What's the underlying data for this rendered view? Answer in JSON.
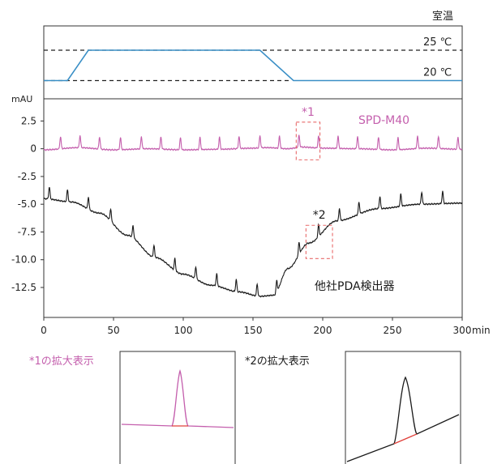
{
  "chart_data": [
    {
      "type": "line",
      "title": "室温",
      "ylabel": "",
      "xlim": [
        0,
        300
      ],
      "ylim": [
        17,
        29
      ],
      "reference_lines": [
        {
          "value": 25,
          "label": "25 ℃"
        },
        {
          "value": 20,
          "label": "20 ℃"
        }
      ],
      "series": [
        {
          "x": [
            0,
            17,
            32,
            155,
            179,
            300
          ],
          "y": [
            20,
            20,
            25,
            25,
            20,
            20
          ],
          "color": "#3a8fc6"
        }
      ]
    },
    {
      "type": "line",
      "ylabel": "mAU",
      "xlabel": "min",
      "xlim": [
        0,
        300
      ],
      "ylim": [
        -15.2,
        4.5
      ],
      "x_ticks": [
        0,
        50,
        100,
        150,
        200,
        250,
        300
      ],
      "y_ticks": [
        2.5,
        0,
        -2.5,
        -5.0,
        -7.5,
        -10.0,
        -12.5
      ],
      "x_tick_labels": [
        "0",
        "50",
        "100",
        "150",
        "200",
        "250",
        "300"
      ],
      "y_tick_labels": [
        "2.5",
        "0",
        "-2.5",
        "-5.0",
        "-7.5",
        "-10.0",
        "-12.5"
      ],
      "series": [
        {
          "name": "SPD-M40",
          "color": "#c45fad",
          "baseline": {
            "x": [
              0,
              25,
              50,
              75,
              100,
              125,
              150,
              160,
              175,
              185,
              200,
              225,
              250,
              275,
              300
            ],
            "y": [
              -0.1,
              0.1,
              -0.1,
              0.0,
              -0.1,
              -0.05,
              0.05,
              0.1,
              0.0,
              0.15,
              0.05,
              0.0,
              -0.1,
              0.05,
              -0.05
            ]
          },
          "peak_times": [
            12,
            26,
            40,
            55,
            70,
            84,
            98,
            112,
            126,
            140,
            155,
            169,
            183,
            197,
            211,
            225,
            240,
            254,
            268,
            283,
            297
          ],
          "peak_height": 1.1
        },
        {
          "name": "他社PDA検出器",
          "color": "#1a1a1a",
          "baseline": {
            "x": [
              0,
              20,
              40,
              60,
              80,
              100,
              120,
              140,
              155,
              165,
              175,
              190,
              210,
              240,
              270,
              300
            ],
            "y": [
              -4.5,
              -4.8,
              -5.8,
              -7.8,
              -9.8,
              -11.3,
              -12.3,
              -12.9,
              -13.3,
              -13.2,
              -10.8,
              -8.5,
              -6.5,
              -5.4,
              -5.0,
              -4.9
            ]
          },
          "peak_times": [
            4,
            17,
            32,
            48,
            64,
            79,
            94,
            109,
            124,
            138,
            153,
            167,
            183,
            197,
            212,
            226,
            241,
            256,
            271,
            286
          ],
          "peak_height": 1.1
        }
      ],
      "annotations": [
        {
          "label": "*1",
          "box_x": [
            181,
            198
          ],
          "box_y": [
            -1.0,
            2.4
          ],
          "color": "#e86a6a",
          "text_color": "#c45fad"
        },
        {
          "label": "*2",
          "box_x": [
            188,
            207
          ],
          "box_y": [
            -9.9,
            -6.9
          ],
          "color": "#e86a6a",
          "text_color": "#1a1a1a"
        }
      ]
    }
  ],
  "insets": [
    {
      "label": "*1の拡大表示",
      "label_color": "#c45fad",
      "trace_color": "#c45fad"
    },
    {
      "label": "*2の拡大表示",
      "label_color": "#1a1a1a",
      "trace_color": "#1a1a1a"
    }
  ],
  "colors": {
    "temperature_line": "#3a8fc6",
    "spd_trace": "#c45fad",
    "other_trace": "#1a1a1a",
    "highlight": "#e86a6a",
    "baseline_fit": "#e0403a"
  }
}
